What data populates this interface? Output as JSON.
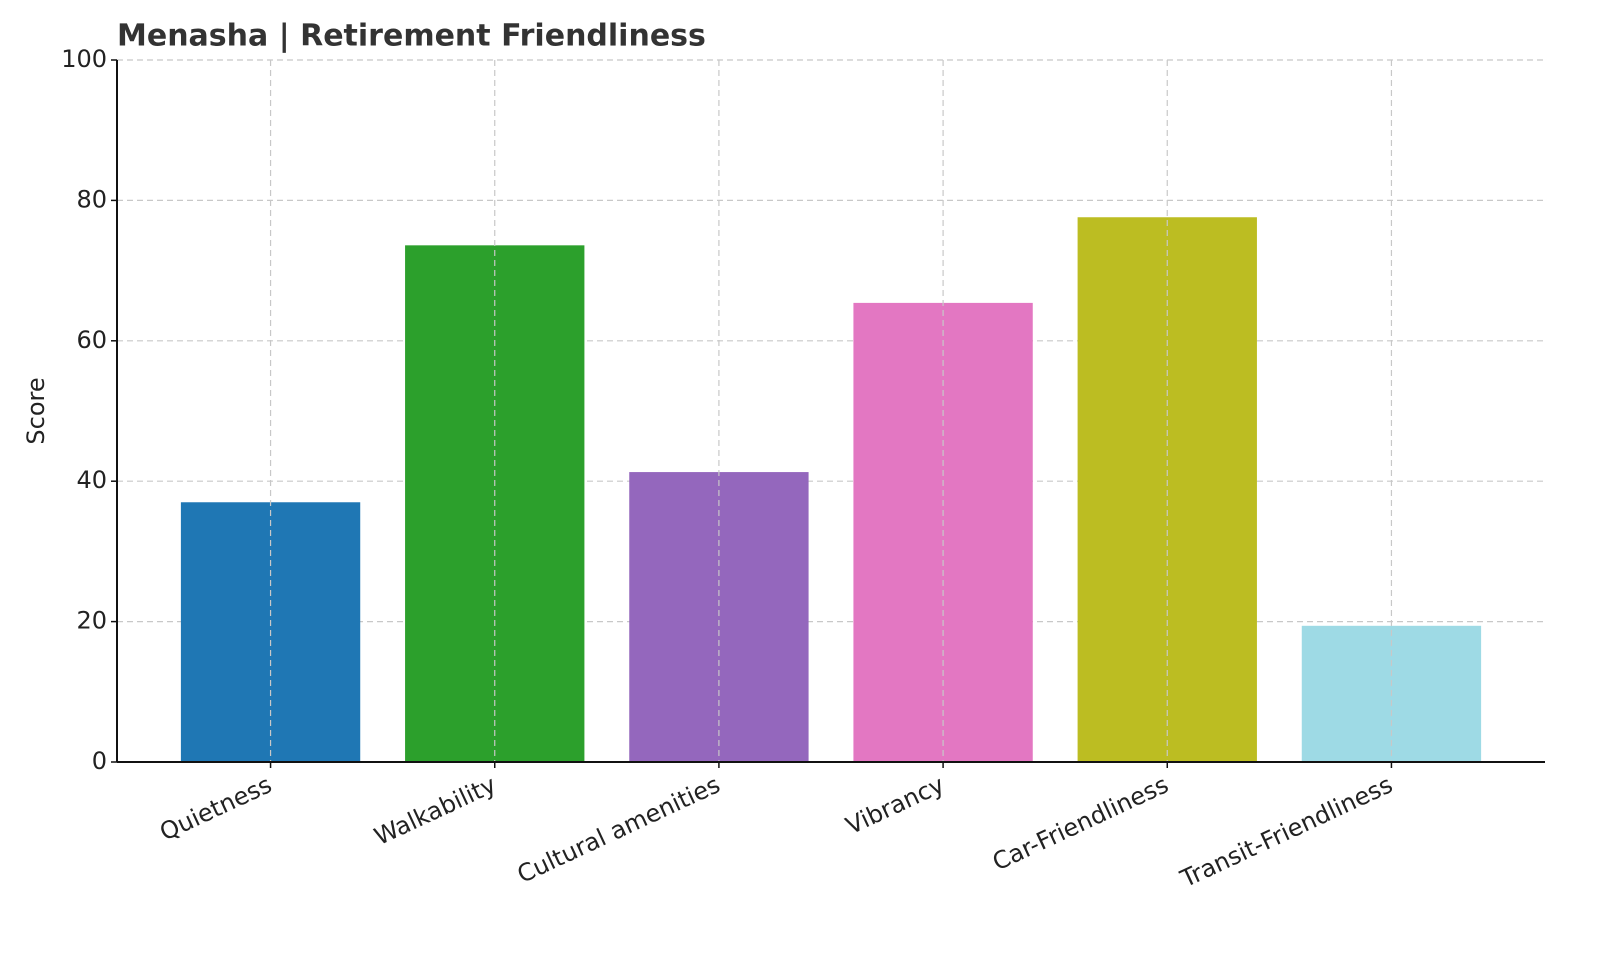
{
  "chart_data": {
    "type": "bar",
    "title": "Menasha | Retirement Friendliness",
    "y_label": "Score",
    "categories": [
      "Quietness",
      "Walkability",
      "Cultural amenities",
      "Vibrancy",
      "Car-Friendliness",
      "Transit-Friendliness"
    ],
    "values": [
      37.0,
      73.6,
      41.3,
      65.4,
      77.6,
      19.4
    ],
    "colors": [
      "#1f77b4",
      "#2ca02c",
      "#9467bd",
      "#e377c2",
      "#bcbd22",
      "#9edae5"
    ],
    "ylim": [
      0,
      100
    ],
    "yticks": [
      0,
      20,
      40,
      60,
      80,
      100
    ],
    "grid": true
  }
}
